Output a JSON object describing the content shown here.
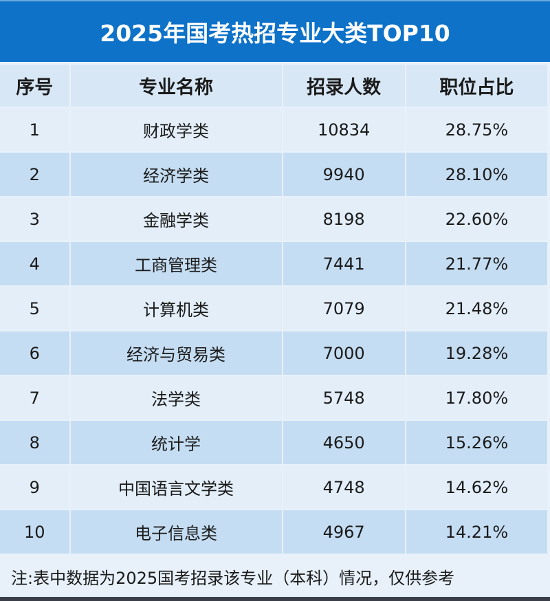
{
  "chart_data": {
    "type": "table",
    "title": "2025年国考热招专业大类TOP10",
    "columns": [
      "序号",
      "专业名称",
      "招录人数",
      "职位占比"
    ],
    "rows": [
      [
        "1",
        "财政学类",
        "10834",
        "28.75%"
      ],
      [
        "2",
        "经济学类",
        "9940",
        "28.10%"
      ],
      [
        "3",
        "金融学类",
        "8198",
        "22.60%"
      ],
      [
        "4",
        "工商管理类",
        "7441",
        "21.77%"
      ],
      [
        "5",
        "计算机类",
        "7079",
        "21.48%"
      ],
      [
        "6",
        "经济与贸易类",
        "7000",
        "19.28%"
      ],
      [
        "7",
        "法学类",
        "5748",
        "17.80%"
      ],
      [
        "8",
        "统计学",
        "4650",
        "15.26%"
      ],
      [
        "9",
        "中国语言文学类",
        "4748",
        "14.62%"
      ],
      [
        "10",
        "电子信息类",
        "4967",
        "14.21%"
      ]
    ],
    "note": "注:表中数据为2025国考招录该专业（本科）情况，仅供参考"
  },
  "colors": {
    "title_bg": "#0d72c8",
    "header_bg": "#d8e7f5",
    "row_light": "#e3eef8",
    "row_dark": "#c5ddf2"
  }
}
